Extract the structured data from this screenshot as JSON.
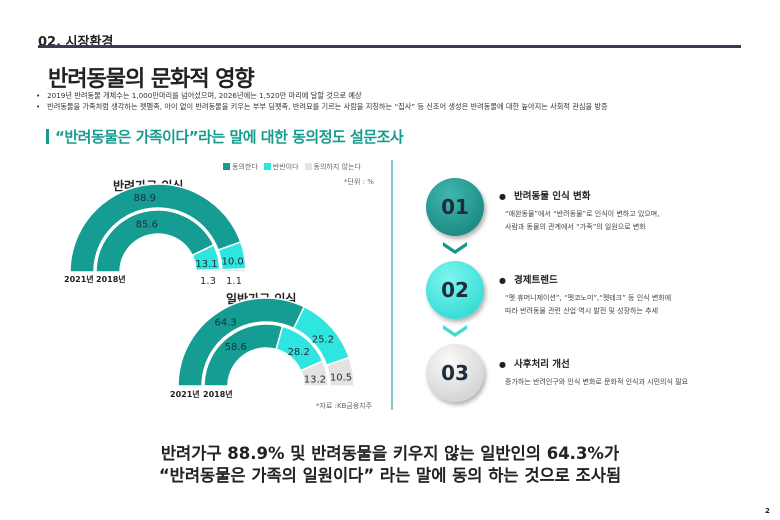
{
  "header": {
    "section": "02. 시장환경",
    "title": "반려동물의 문화적 영향"
  },
  "bullets": [
    "2019년 반려동물 개체수는 1,000만마리를 넘어섰으며, 2026년에는 1,520만 마리에 달할 것으로 예상",
    "반려동물을 가족처럼 생각하는 펫펨족, 아이 없이 반려동물을 키우는 부부 딩펫족, 반려묘를 기르는 사람을 지칭하는 “집사” 등 신조어 생성은 반려동물에 대한 높아지는 사회적 관심을 방증"
  ],
  "subtitle": "“반려동물은 가족이다”라는 말에 대한 동의정도 설문조사",
  "legend": [
    "동의한다",
    "반반이다",
    "동의하지 않는다"
  ],
  "unit": "*단위 : %",
  "source": "*자료 :KB금융지주",
  "colors": {
    "agree": "#159c93",
    "neutral": "#2ee6df",
    "disagree": "#e3e3e3",
    "accent": "#159c8f"
  },
  "chart_data": [
    {
      "type": "pie",
      "title": "반려가구 인식",
      "rings": [
        {
          "name": "2021년",
          "values": [
            88.9,
            10.0,
            1.1
          ]
        },
        {
          "name": "2018년",
          "values": [
            85.6,
            13.1,
            1.3
          ]
        }
      ],
      "categories": [
        "동의한다",
        "반반이다",
        "동의하지 않는다"
      ],
      "unit": "%"
    },
    {
      "type": "pie",
      "title": "일반가구 인식",
      "rings": [
        {
          "name": "2021년",
          "values": [
            64.3,
            25.2,
            10.5
          ]
        },
        {
          "name": "2018년",
          "values": [
            58.6,
            28.2,
            13.2
          ]
        }
      ],
      "categories": [
        "동의한다",
        "반반이다",
        "동의하지 않는다"
      ],
      "unit": "%"
    }
  ],
  "steps": [
    {
      "num": "01",
      "title": "반려동물 인식 변화",
      "desc": [
        "“애완동물”에서 “반려동물”로 인식이 변하고 있으며,",
        "사람과 동물의 관계에서 “가족”의 일원으로  변화"
      ]
    },
    {
      "num": "02",
      "title": "경제트렌드",
      "desc": [
        "“펫 휴머니제이션”, “펫코노미”,“펫테크” 등 인식 변화에",
        "따라 반려동물 관련 산업 역시 발전 및 성장하는 추세"
      ]
    },
    {
      "num": "03",
      "title": "사후처리 개선",
      "desc": [
        "증가하는 반려인구와 인식 변화로 문화적 인식과 시민의식 필요"
      ]
    }
  ],
  "conclusion": [
    "반려가구 88.9% 및 반려동물을 키우지 않는 일반인의 64.3%가",
    "“반려동물은 가족의 일원이다” 라는 말에 동의 하는 것으로 조사됨"
  ],
  "page": "2"
}
